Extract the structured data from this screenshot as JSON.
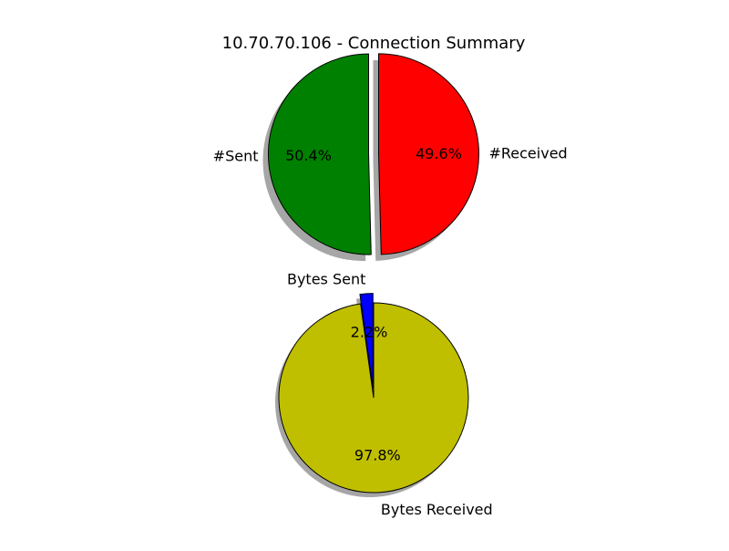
{
  "chart_data": [
    {
      "type": "pie",
      "title": "10.70.70.106 - Connection Summary",
      "slices": [
        {
          "label": "#Sent",
          "value": 50.4,
          "pct_text": "50.4%",
          "color": "#008000",
          "explode": true
        },
        {
          "label": "#Received",
          "value": 49.6,
          "pct_text": "49.6%",
          "color": "#ff0000",
          "explode": true
        }
      ],
      "shadow": true,
      "legend": "none"
    },
    {
      "type": "pie",
      "title": "",
      "slices": [
        {
          "label": "Bytes Sent",
          "value": 2.2,
          "pct_text": "2.2%",
          "color": "#0000ff",
          "explode": true
        },
        {
          "label": "Bytes Received",
          "value": 97.8,
          "pct_text": "97.8%",
          "color": "#bfbf00",
          "explode": false
        }
      ],
      "shadow": true,
      "legend": "none"
    }
  ]
}
